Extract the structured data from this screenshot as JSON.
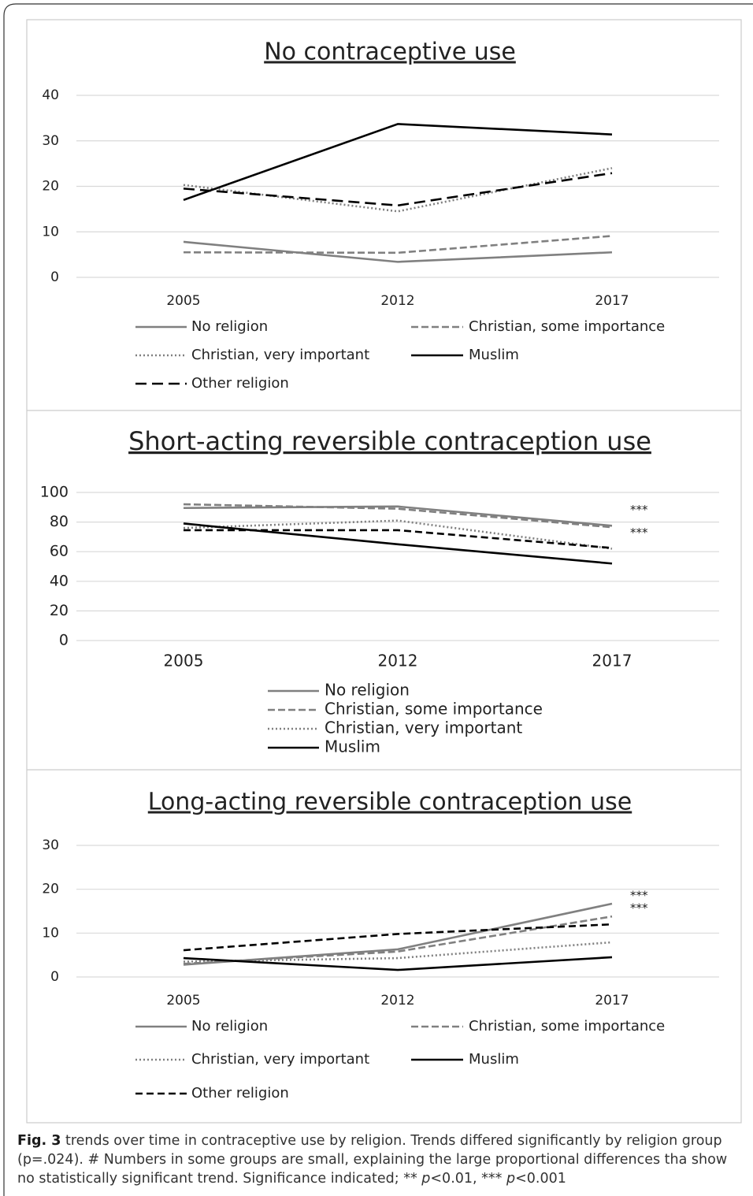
{
  "chart_data": [
    {
      "type": "line",
      "title": "No contraceptive use",
      "categories": [
        "2005",
        "2012",
        "2017"
      ],
      "ylim": [
        0,
        40
      ],
      "yticks": [
        0,
        10,
        20,
        30,
        40
      ],
      "grid": true,
      "series": [
        {
          "name": "No religion",
          "color": "#808080",
          "dash": "solid",
          "values": [
            7.8,
            3.4,
            5.5
          ]
        },
        {
          "name": "Christian, some importance",
          "color": "#808080",
          "dash": "dashed",
          "values": [
            5.5,
            5.4,
            9.1
          ]
        },
        {
          "name": "Christian, very important",
          "color": "#808080",
          "dash": "dotted",
          "values": [
            20.3,
            14.5,
            24.0
          ]
        },
        {
          "name": "Muslim",
          "color": "#000000",
          "dash": "solid",
          "values": [
            17.0,
            33.7,
            31.4
          ]
        },
        {
          "name": "Other religion",
          "color": "#000000",
          "dash": "longdash",
          "values": [
            19.5,
            15.8,
            22.9
          ]
        }
      ]
    },
    {
      "type": "line",
      "title": "Short-acting reversible contraception use",
      "categories": [
        "2005",
        "2012",
        "2017"
      ],
      "ylim": [
        0,
        100
      ],
      "yticks": [
        0,
        20,
        40,
        60,
        80,
        100
      ],
      "grid": true,
      "series": [
        {
          "name": "No religion",
          "color": "#808080",
          "dash": "solid",
          "values": [
            89.5,
            90.5,
            77.5
          ]
        },
        {
          "name": "Christian, some importance",
          "color": "#808080",
          "dash": "dashed",
          "values": [
            92,
            89,
            76.5
          ]
        },
        {
          "name": "Christian, very important",
          "color": "#808080",
          "dash": "dotted",
          "values": [
            76,
            81,
            62
          ]
        },
        {
          "name": "Muslim",
          "color": "#000000",
          "dash": "solid",
          "values": [
            79,
            65,
            52
          ]
        },
        {
          "color": "#000000",
          "dash": "shortdash",
          "values": [
            74.5,
            74.5,
            62.5
          ]
        }
      ],
      "annotations": [
        {
          "text": "***",
          "series": 0
        },
        {
          "text": "***",
          "series": 2
        }
      ]
    },
    {
      "type": "line",
      "title": "Long-acting reversible contraception use",
      "categories": [
        "2005",
        "2012",
        "2017"
      ],
      "ylim": [
        0,
        30
      ],
      "yticks": [
        0,
        10,
        20,
        30
      ],
      "grid": true,
      "series": [
        {
          "name": "No religion",
          "color": "#808080",
          "dash": "solid",
          "values": [
            2.8,
            6.3,
            16.7
          ]
        },
        {
          "name": "Christian, some importance",
          "color": "#808080",
          "dash": "dashed",
          "values": [
            3.0,
            5.8,
            13.8
          ]
        },
        {
          "name": "Christian, very important",
          "color": "#808080",
          "dash": "dotted",
          "values": [
            3.5,
            4.3,
            7.9
          ]
        },
        {
          "name": "Muslim",
          "color": "#000000",
          "dash": "solid",
          "values": [
            4.3,
            1.6,
            4.5
          ]
        },
        {
          "name": "Other religion",
          "color": "#000000",
          "dash": "shortdash",
          "values": [
            6.1,
            9.8,
            12.0
          ]
        }
      ],
      "annotations": [
        {
          "text": "***",
          "series": 0
        },
        {
          "text": "***",
          "series": 1
        }
      ]
    }
  ],
  "caption": {
    "label": "Fig. 3",
    "parts": [
      " trends over time in contraceptive use by religion. Trends differed significantly by religion group (p=.024). # Numbers in some groups are small, explaining the large proportional differences tha show no statistically significant trend. Significance indicated; ** ",
      "p",
      "<0.01, *** ",
      "p",
      "<0.001"
    ]
  }
}
